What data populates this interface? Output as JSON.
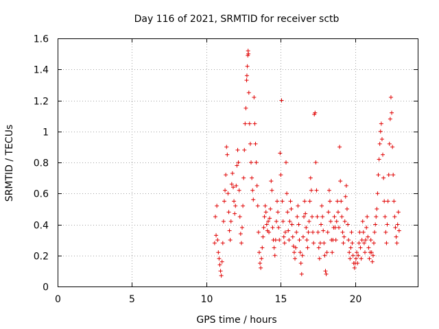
{
  "chart_data": {
    "type": "scatter",
    "title": "Day 116 of 2021, SRMTID for receiver sctb",
    "xlabel": "GPS time / hours",
    "ylabel": "SRMTID / TECUs",
    "xlim": [
      0,
      24.2
    ],
    "ylim": [
      0,
      1.6
    ],
    "xticks": [
      0,
      5,
      10,
      15,
      20
    ],
    "yticks": [
      0,
      0.2,
      0.4,
      0.6,
      0.8,
      1,
      1.2,
      1.4,
      1.6
    ],
    "xtick_labels": [
      "0",
      "5",
      "10",
      "15",
      "20"
    ],
    "ytick_labels": [
      "0",
      "0.2",
      "0.4",
      "0.6",
      "0.8",
      "1",
      "1.2",
      "1.4",
      "1.6"
    ],
    "grid": true,
    "marker": "+",
    "marker_color": "#e00000",
    "series": [
      {
        "name": "SRMTID",
        "points": [
          [
            10.55,
            0.28
          ],
          [
            10.6,
            0.45
          ],
          [
            10.65,
            0.33
          ],
          [
            10.7,
            0.52
          ],
          [
            10.75,
            0.3
          ],
          [
            10.8,
            0.22
          ],
          [
            10.85,
            0.18
          ],
          [
            10.9,
            0.14
          ],
          [
            10.95,
            0.1
          ],
          [
            11.0,
            0.07
          ],
          [
            11.05,
            0.16
          ],
          [
            11.1,
            0.28
          ],
          [
            11.15,
            0.42
          ],
          [
            11.2,
            0.55
          ],
          [
            11.25,
            0.62
          ],
          [
            11.3,
            0.72
          ],
          [
            11.35,
            0.9
          ],
          [
            11.4,
            0.85
          ],
          [
            11.45,
            0.6
          ],
          [
            11.5,
            0.48
          ],
          [
            11.55,
            0.36
          ],
          [
            11.6,
            0.3
          ],
          [
            11.65,
            0.42
          ],
          [
            11.7,
            0.66
          ],
          [
            11.75,
            0.73
          ],
          [
            11.8,
            0.64
          ],
          [
            11.85,
            0.55
          ],
          [
            11.9,
            0.47
          ],
          [
            11.95,
            0.52
          ],
          [
            12.0,
            0.65
          ],
          [
            12.05,
            0.78
          ],
          [
            12.1,
            0.88
          ],
          [
            12.15,
            0.8
          ],
          [
            12.2,
            0.62
          ],
          [
            12.25,
            0.45
          ],
          [
            12.3,
            0.34
          ],
          [
            12.35,
            0.28
          ],
          [
            12.4,
            0.38
          ],
          [
            12.45,
            0.52
          ],
          [
            12.5,
            0.7
          ],
          [
            12.55,
            0.88
          ],
          [
            12.6,
            1.05
          ],
          [
            12.65,
            1.15
          ],
          [
            12.7,
            1.33
          ],
          [
            12.72,
            1.36
          ],
          [
            12.75,
            1.42
          ],
          [
            12.78,
            1.49
          ],
          [
            12.8,
            1.52
          ],
          [
            12.82,
            1.5
          ],
          [
            12.85,
            1.25
          ],
          [
            12.9,
            1.05
          ],
          [
            12.95,
            0.92
          ],
          [
            13.0,
            0.8
          ],
          [
            13.05,
            0.7
          ],
          [
            13.1,
            0.62
          ],
          [
            13.15,
            0.56
          ],
          [
            13.2,
            1.22
          ],
          [
            13.25,
            1.05
          ],
          [
            13.3,
            0.92
          ],
          [
            13.35,
            0.8
          ],
          [
            13.4,
            0.65
          ],
          [
            13.45,
            0.52
          ],
          [
            13.5,
            0.35
          ],
          [
            13.55,
            0.22
          ],
          [
            13.6,
            0.15
          ],
          [
            13.65,
            0.12
          ],
          [
            13.7,
            0.18
          ],
          [
            13.75,
            0.25
          ],
          [
            13.8,
            0.32
          ],
          [
            13.85,
            0.38
          ],
          [
            13.9,
            0.45
          ],
          [
            13.95,
            0.52
          ],
          [
            14.0,
            0.48
          ],
          [
            14.05,
            0.4
          ],
          [
            14.1,
            0.36
          ],
          [
            14.15,
            0.42
          ],
          [
            14.2,
            0.35
          ],
          [
            14.25,
            0.44
          ],
          [
            14.3,
            0.5
          ],
          [
            14.35,
            0.68
          ],
          [
            14.4,
            0.62
          ],
          [
            14.45,
            0.38
          ],
          [
            14.5,
            0.3
          ],
          [
            14.55,
            0.25
          ],
          [
            14.6,
            0.2
          ],
          [
            14.65,
            0.3
          ],
          [
            14.7,
            0.42
          ],
          [
            14.75,
            0.55
          ],
          [
            14.8,
            0.48
          ],
          [
            14.85,
            0.38
          ],
          [
            14.9,
            0.3
          ],
          [
            14.95,
            0.86
          ],
          [
            15.0,
            0.72
          ],
          [
            15.05,
            1.2
          ],
          [
            15.1,
            0.55
          ],
          [
            15.15,
            0.42
          ],
          [
            15.2,
            0.32
          ],
          [
            15.25,
            0.28
          ],
          [
            15.3,
            0.35
          ],
          [
            15.35,
            0.8
          ],
          [
            15.4,
            0.6
          ],
          [
            15.45,
            0.48
          ],
          [
            15.5,
            0.36
          ],
          [
            15.55,
            0.3
          ],
          [
            15.6,
            0.42
          ],
          [
            15.65,
            0.55
          ],
          [
            15.7,
            0.5
          ],
          [
            15.75,
            0.4
          ],
          [
            15.8,
            0.32
          ],
          [
            15.85,
            0.26
          ],
          [
            15.9,
            0.22
          ],
          [
            15.95,
            0.18
          ],
          [
            16.0,
            0.25
          ],
          [
            16.05,
            0.35
          ],
          [
            16.1,
            0.45
          ],
          [
            16.15,
            0.52
          ],
          [
            16.2,
            0.4
          ],
          [
            16.25,
            0.3
          ],
          [
            16.3,
            0.22
          ],
          [
            16.35,
            0.15
          ],
          [
            16.4,
            0.08
          ],
          [
            16.45,
            0.2
          ],
          [
            16.5,
            0.32
          ],
          [
            16.55,
            0.45
          ],
          [
            16.6,
            0.55
          ],
          [
            16.65,
            0.47
          ],
          [
            16.7,
            0.38
          ],
          [
            16.75,
            0.3
          ],
          [
            16.8,
            0.25
          ],
          [
            16.85,
            0.35
          ],
          [
            16.9,
            0.42
          ],
          [
            16.95,
            0.55
          ],
          [
            17.0,
            0.7
          ],
          [
            17.05,
            0.62
          ],
          [
            17.1,
            0.45
          ],
          [
            17.15,
            0.35
          ],
          [
            17.2,
            0.28
          ],
          [
            17.25,
            1.11
          ],
          [
            17.3,
            1.12
          ],
          [
            17.35,
            0.8
          ],
          [
            17.4,
            0.62
          ],
          [
            17.45,
            0.45
          ],
          [
            17.5,
            0.35
          ],
          [
            17.55,
            0.25
          ],
          [
            17.6,
            0.18
          ],
          [
            17.65,
            0.28
          ],
          [
            17.7,
            0.4
          ],
          [
            17.75,
            0.52
          ],
          [
            17.8,
            0.45
          ],
          [
            17.85,
            0.36
          ],
          [
            17.9,
            0.28
          ],
          [
            17.95,
            0.2
          ],
          [
            18.0,
            0.1
          ],
          [
            18.05,
            0.08
          ],
          [
            18.1,
            0.22
          ],
          [
            18.15,
            0.35
          ],
          [
            18.2,
            0.48
          ],
          [
            18.25,
            0.62
          ],
          [
            18.3,
            0.55
          ],
          [
            18.35,
            0.42
          ],
          [
            18.4,
            0.3
          ],
          [
            18.45,
            0.22
          ],
          [
            18.5,
            0.3
          ],
          [
            18.55,
            0.38
          ],
          [
            18.6,
            0.45
          ],
          [
            18.65,
            0.38
          ],
          [
            18.7,
            0.3
          ],
          [
            18.75,
            0.42
          ],
          [
            18.8,
            0.55
          ],
          [
            18.85,
            0.48
          ],
          [
            18.9,
            0.38
          ],
          [
            18.95,
            0.9
          ],
          [
            19.0,
            0.68
          ],
          [
            19.05,
            0.55
          ],
          [
            19.1,
            0.45
          ],
          [
            19.15,
            0.35
          ],
          [
            19.2,
            0.28
          ],
          [
            19.25,
            0.32
          ],
          [
            19.3,
            0.42
          ],
          [
            19.35,
            0.58
          ],
          [
            19.4,
            0.65
          ],
          [
            19.45,
            0.5
          ],
          [
            19.5,
            0.4
          ],
          [
            19.55,
            0.3
          ],
          [
            19.6,
            0.22
          ],
          [
            19.65,
            0.18
          ],
          [
            19.7,
            0.25
          ],
          [
            19.75,
            0.35
          ],
          [
            19.8,
            0.28
          ],
          [
            19.85,
            0.2
          ],
          [
            19.9,
            0.15
          ],
          [
            19.95,
            0.12
          ],
          [
            20.0,
            0.15
          ],
          [
            20.05,
            0.18
          ],
          [
            20.1,
            0.22
          ],
          [
            20.15,
            0.15
          ],
          [
            20.2,
            0.2
          ],
          [
            20.25,
            0.28
          ],
          [
            20.3,
            0.35
          ],
          [
            20.35,
            0.25
          ],
          [
            20.4,
            0.18
          ],
          [
            20.45,
            0.3
          ],
          [
            20.5,
            0.42
          ],
          [
            20.55,
            0.35
          ],
          [
            20.6,
            0.28
          ],
          [
            20.65,
            0.22
          ],
          [
            20.7,
            0.3
          ],
          [
            20.75,
            0.38
          ],
          [
            20.8,
            0.45
          ],
          [
            20.85,
            0.32
          ],
          [
            20.9,
            0.25
          ],
          [
            20.95,
            0.18
          ],
          [
            21.0,
            0.22
          ],
          [
            21.05,
            0.3
          ],
          [
            21.1,
            0.22
          ],
          [
            21.15,
            0.16
          ],
          [
            21.2,
            0.2
          ],
          [
            21.25,
            0.28
          ],
          [
            21.3,
            0.35
          ],
          [
            21.35,
            0.4
          ],
          [
            21.4,
            0.45
          ],
          [
            21.45,
            0.5
          ],
          [
            21.5,
            0.6
          ],
          [
            21.55,
            0.72
          ],
          [
            21.6,
            0.82
          ],
          [
            21.65,
            0.92
          ],
          [
            21.7,
            1.0
          ],
          [
            21.75,
            1.05
          ],
          [
            21.8,
            0.95
          ],
          [
            21.85,
            0.85
          ],
          [
            21.9,
            0.7
          ],
          [
            21.95,
            0.55
          ],
          [
            22.0,
            0.45
          ],
          [
            22.05,
            0.35
          ],
          [
            22.1,
            0.28
          ],
          [
            22.15,
            0.4
          ],
          [
            22.2,
            0.55
          ],
          [
            22.25,
            0.72
          ],
          [
            22.3,
            0.92
          ],
          [
            22.35,
            1.08
          ],
          [
            22.4,
            1.22
          ],
          [
            22.45,
            1.12
          ],
          [
            22.5,
            0.9
          ],
          [
            22.55,
            0.72
          ],
          [
            22.6,
            0.55
          ],
          [
            22.65,
            0.45
          ],
          [
            22.7,
            0.38
          ],
          [
            22.75,
            0.32
          ],
          [
            22.8,
            0.28
          ],
          [
            22.85,
            0.4
          ],
          [
            22.9,
            0.48
          ],
          [
            22.95,
            0.36
          ]
        ]
      }
    ]
  }
}
